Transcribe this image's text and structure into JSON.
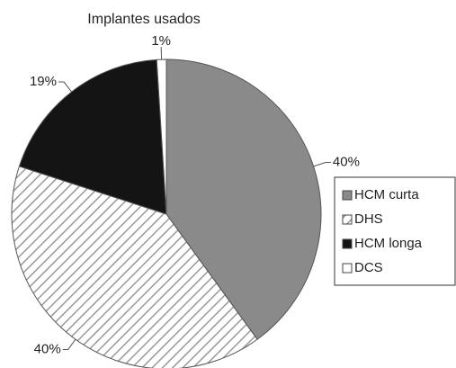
{
  "chart_data": {
    "type": "pie",
    "title": "Implantes usados",
    "categories": [
      "HCM curta",
      "DHS",
      "HCM longa",
      "DCS"
    ],
    "values": [
      40,
      40,
      19,
      1
    ],
    "value_labels": [
      "40%",
      "40%",
      "19%",
      "1%"
    ],
    "colors": [
      "#8a8a8a",
      "#ffffff",
      "#141414",
      "#ffffff"
    ],
    "hatch": [
      false,
      true,
      false,
      false
    ],
    "legend": "right"
  }
}
